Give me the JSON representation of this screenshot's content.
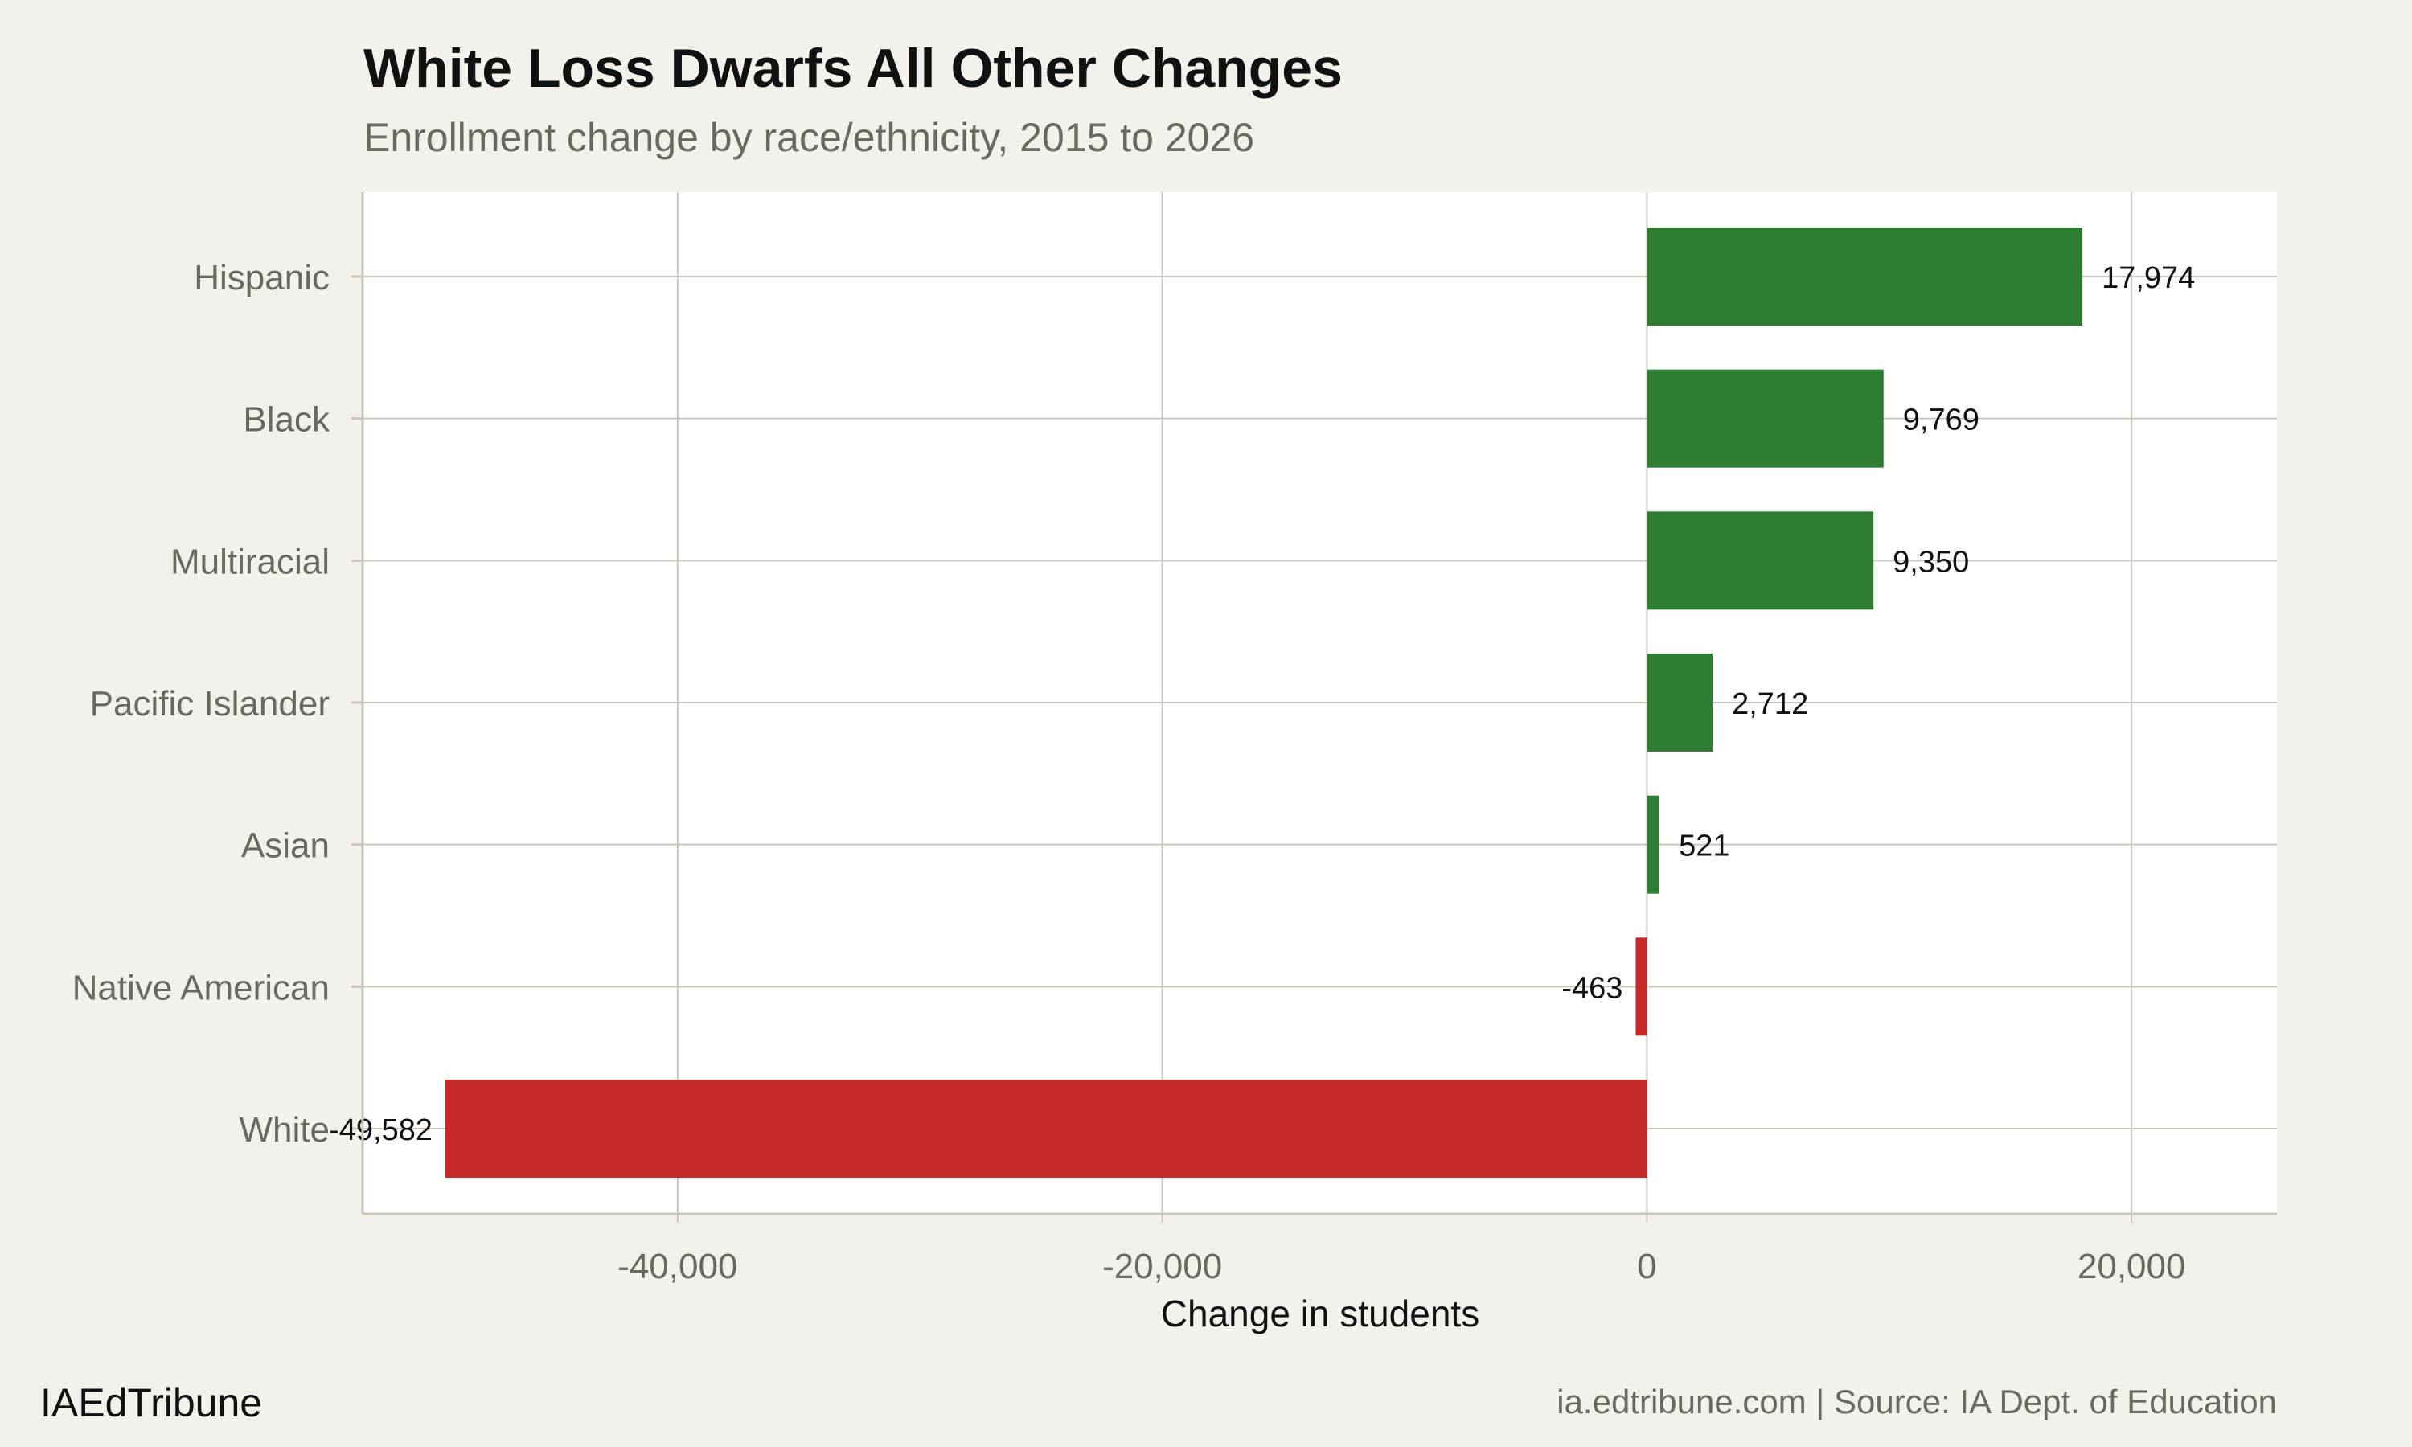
{
  "title": "White Loss Dwarfs All Other Changes",
  "subtitle": "Enrollment change by race/ethnicity, 2015 to 2026",
  "footer_left": "IAEdTribune",
  "footer_right": "ia.edtribune.com | Source: IA Dept. of Education",
  "colors": {
    "positive": "#2e7d32",
    "negative": "#c62828",
    "background": "#f4f1ec",
    "panel": "#ffffff",
    "grid": "#cbc6bd"
  },
  "chart_data": {
    "type": "bar",
    "orientation": "horizontal",
    "categories": [
      "Hispanic",
      "Black",
      "Multiracial",
      "Pacific Islander",
      "Asian",
      "Native American",
      "White"
    ],
    "values": [
      17974,
      9769,
      9350,
      2712,
      521,
      -463,
      -49582
    ],
    "data_labels": [
      "17,974",
      "9,769",
      "9,350",
      "2,712",
      "521",
      "-463",
      "-49,582"
    ],
    "xlabel": "Change in students",
    "ylabel": "",
    "xlim": [
      -53000,
      26000
    ],
    "xticks": [
      -40000,
      -20000,
      0,
      20000
    ],
    "xtick_labels": [
      "-40,000",
      "-20,000",
      "0",
      "20,000"
    ],
    "grid": true,
    "legend": "none"
  }
}
